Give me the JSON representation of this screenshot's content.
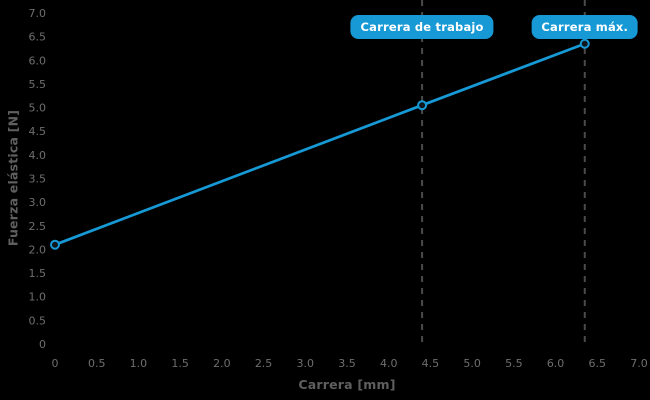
{
  "chart_data": {
    "type": "line",
    "title": "",
    "xlabel": "Carrera [mm]",
    "ylabel": "Fuerza elástica [N]",
    "xlim": [
      0,
      7
    ],
    "ylim": [
      0,
      7
    ],
    "grid": false,
    "legend": "none",
    "xticks": {
      "values": [
        0,
        0.5,
        1,
        1.5,
        2,
        2.5,
        3,
        3.5,
        4,
        4.5,
        5,
        5.5,
        6,
        6.5,
        7
      ],
      "labels": [
        "0",
        "0.5",
        "1.0",
        "1.5",
        "2.0",
        "2.5",
        "3.0",
        "3.5",
        "4.0",
        "4.5",
        "5.0",
        "5.5",
        "6.0",
        "6.5",
        "7.0"
      ]
    },
    "yticks": {
      "values": [
        0,
        0.5,
        1,
        1.5,
        2,
        2.5,
        3,
        3.5,
        4,
        4.5,
        5,
        5.5,
        6,
        6.5,
        7
      ],
      "labels": [
        "0",
        "0.5",
        "1.0",
        "1.5",
        "2.0",
        "2.5",
        "3.0",
        "3.5",
        "4.0",
        "4.5",
        "5.0",
        "5.5",
        "6.0",
        "6.5",
        "7.0"
      ]
    },
    "series": [
      {
        "name": "Fuerza elástica",
        "points": [
          [
            0,
            2.1
          ],
          [
            4.4,
            5.05
          ],
          [
            6.35,
            6.35
          ]
        ]
      }
    ],
    "annotations": [
      {
        "label": "Carrera de trabajo",
        "x": 4.4,
        "name": "working-stroke"
      },
      {
        "label": "Carrera máx.",
        "x": 6.35,
        "name": "max-stroke"
      }
    ],
    "colors": {
      "background": "#000000",
      "line": "#1799d6",
      "marker_fill": "#10161b",
      "badge": "#1799d6",
      "badge_text": "#ffffff",
      "reference_line": "#4a4a4a",
      "tick_label": "#6e6e6e",
      "axis_title": "#5f5f5f"
    }
  }
}
